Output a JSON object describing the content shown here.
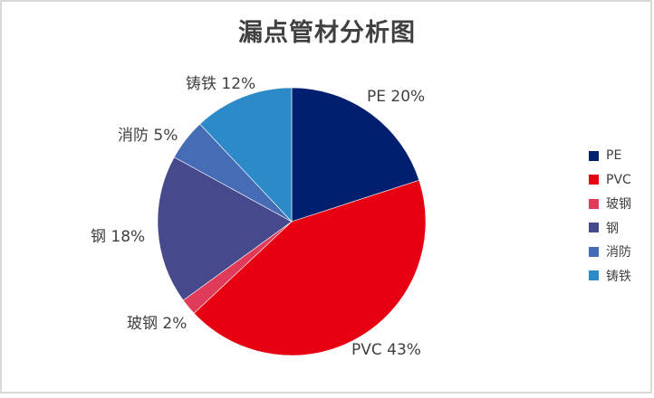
{
  "chart_data": {
    "type": "pie",
    "title": "漏点管材分析图",
    "categories": [
      "PE",
      "PVC",
      "玻钢",
      "钢",
      "消防",
      "铸铁"
    ],
    "values": [
      20,
      43,
      2,
      18,
      5,
      12
    ],
    "unit": "%",
    "colors": [
      "#00206f",
      "#e60012",
      "#e03c5a",
      "#46498c",
      "#456cb4",
      "#2d8ac8"
    ],
    "data_labels": [
      "PE 20%",
      "PVC 43%",
      "玻钢 2%",
      "钢 18%",
      "消防 5%",
      "铸铁 12%"
    ],
    "start_angle": "12 o'clock",
    "direction": "clockwise",
    "legend_position": "right"
  },
  "title": "漏点管材分析图",
  "labels": {
    "pe": "PE 20%",
    "pvc": "PVC 43%",
    "frp": "玻钢 2%",
    "steel": "钢 18%",
    "fire": "消防 5%",
    "castiron": "铸铁 12%"
  },
  "legend": [
    {
      "label": "PE",
      "color": "#00206f"
    },
    {
      "label": "PVC",
      "color": "#e60012"
    },
    {
      "label": "玻钢",
      "color": "#e03c5a"
    },
    {
      "label": "钢",
      "color": "#46498c"
    },
    {
      "label": "消防",
      "color": "#456cb4"
    },
    {
      "label": "铸铁",
      "color": "#2d8ac8"
    }
  ]
}
